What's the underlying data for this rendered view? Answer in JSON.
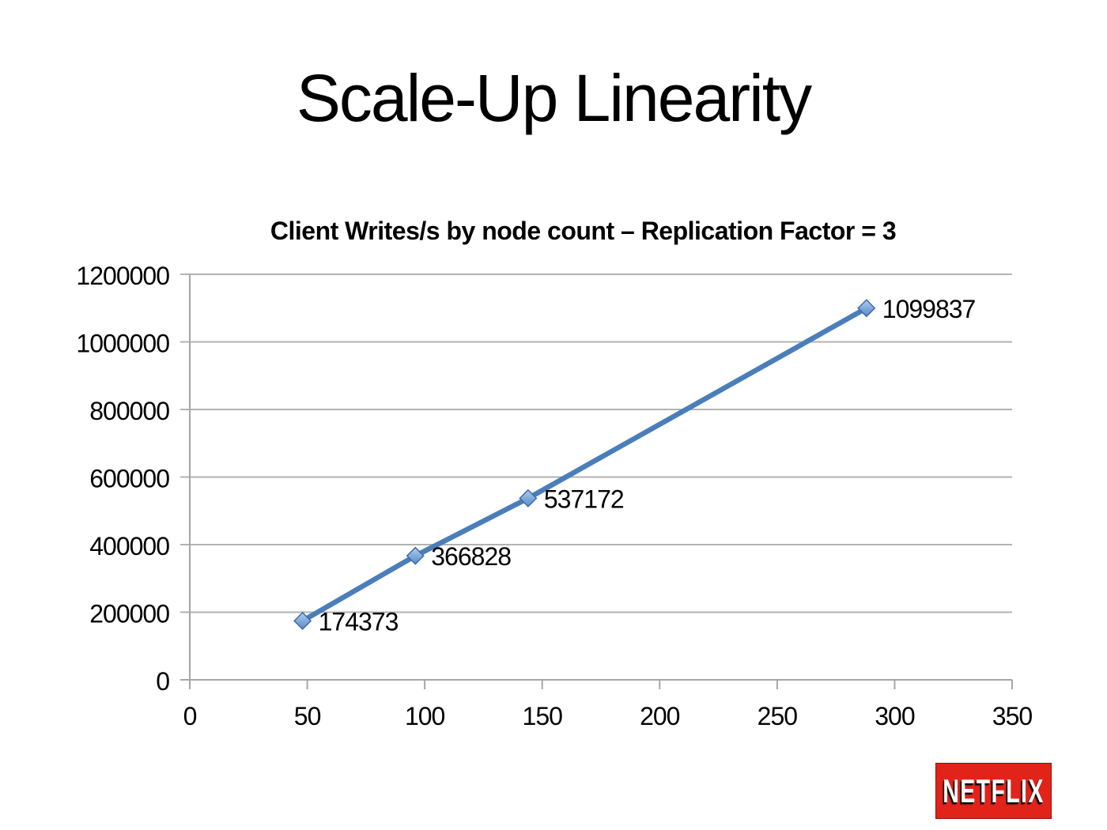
{
  "slide": {
    "title": "Scale-Up Linearity"
  },
  "logo": {
    "text": "NETFLIX",
    "bg_color": "#e2231a",
    "text_color": "#ffffff"
  },
  "chart_data": {
    "type": "line",
    "title": "Client Writes/s by node count – Replication Factor = 3",
    "xlabel": "",
    "ylabel": "",
    "x": [
      48,
      96,
      144,
      288
    ],
    "y": [
      174373,
      366828,
      537172,
      1099837
    ],
    "point_labels": [
      "174373",
      "366828",
      "537172",
      "1099837"
    ],
    "xlim": [
      0,
      350
    ],
    "ylim": [
      0,
      1200000
    ],
    "x_ticks": [
      0,
      50,
      100,
      150,
      200,
      250,
      300,
      350
    ],
    "y_ticks": [
      0,
      200000,
      400000,
      600000,
      800000,
      1000000,
      1200000
    ],
    "grid": "horizontal",
    "legend": "none",
    "line_color": "#4a7ebb",
    "marker": "diamond",
    "marker_fill_top": "#b5d0ef",
    "marker_fill_mid": "#7da7d9",
    "marker_fill_bottom": "#5d8cc7",
    "marker_stroke": "#3f6da8",
    "gridline_color": "#b2b2b2",
    "axis_color": "#a6a6a6",
    "label_color": "#000000"
  }
}
